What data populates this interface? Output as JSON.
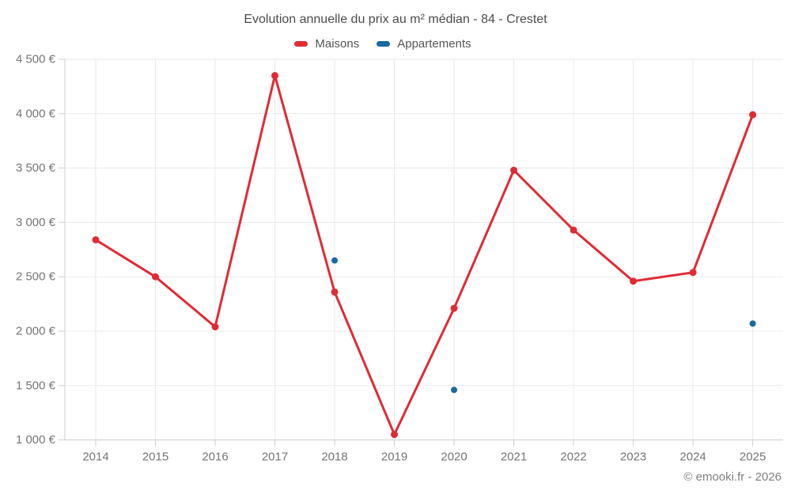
{
  "title": "Evolution annuelle du prix au m² médian - 84 - Crestet",
  "footer": "© emooki.fr - 2026",
  "colors": {
    "maisons": "#e02b34",
    "appartements": "#17699e",
    "grid": "#e9e9e9",
    "axis": "#cfcfcf",
    "tick_label": "#757575",
    "title_text": "#4c4c4c",
    "legend_text": "#555555",
    "footer_text": "#808080"
  },
  "chart_data": {
    "type": "line",
    "title": "Evolution annuelle du prix au m² médian - 84 - Crestet",
    "categories": [
      "2014",
      "2015",
      "2016",
      "2017",
      "2018",
      "2019",
      "2020",
      "2021",
      "2022",
      "2023",
      "2024",
      "2025"
    ],
    "series": [
      {
        "name": "Maisons",
        "color": "#e02b34",
        "style": "line-with-points",
        "values": [
          2840,
          2500,
          2040,
          4350,
          2360,
          1050,
          2210,
          3480,
          2930,
          2460,
          2540,
          3990
        ]
      },
      {
        "name": "Appartements",
        "color": "#17699e",
        "style": "points-only",
        "values": [
          null,
          null,
          null,
          null,
          2650,
          null,
          1460,
          null,
          null,
          null,
          null,
          2070
        ]
      }
    ],
    "ylim": [
      1000,
      4500
    ],
    "ytick_values": [
      1000,
      1500,
      2000,
      2500,
      3000,
      3500,
      4000,
      4500
    ],
    "ytick_labels": [
      "1 000 €",
      "1 500 €",
      "2 000 €",
      "2 500 €",
      "3 000 €",
      "3 500 €",
      "4 000 €",
      "4 500 €"
    ],
    "xlabel": "",
    "ylabel": "",
    "grid": true,
    "legend_position": "top",
    "footer": "© emooki.fr - 2026"
  }
}
